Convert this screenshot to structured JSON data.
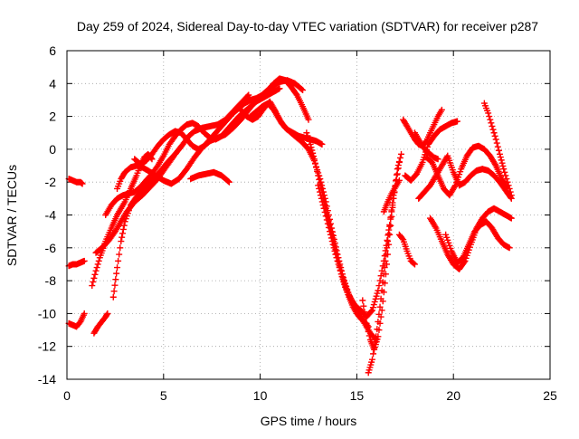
{
  "chart_data": {
    "type": "scatter",
    "title": "Day 259 of 2024, Sidereal Day-to-day VTEC variation (SDTVAR) for receiver p287",
    "xlabel": "GPS time / hours",
    "ylabel": "SDTVAR / TECUs",
    "xlim": [
      0,
      25
    ],
    "ylim": [
      -14,
      6
    ],
    "xticks": [
      "0",
      "5",
      "10",
      "15",
      "20",
      "25"
    ],
    "yticks": [
      "6",
      "4",
      "2",
      "0",
      "-2",
      "-4",
      "-6",
      "-8",
      "-10",
      "-12",
      "-14"
    ],
    "grid": true,
    "marker": "+",
    "color": "#ff0000",
    "series": [
      {
        "x": [
          0.1,
          0.3,
          0.5,
          0.7,
          0.8
        ],
        "y": [
          -1.8,
          -1.9,
          -2.0,
          -2.0,
          -2.1
        ]
      },
      {
        "x": [
          0.1,
          0.3,
          0.5,
          0.7,
          0.9
        ],
        "y": [
          -7.1,
          -7.0,
          -7.0,
          -6.9,
          -6.8
        ]
      },
      {
        "x": [
          0.1,
          0.3,
          0.5,
          0.7,
          0.9
        ],
        "y": [
          -10.6,
          -10.7,
          -10.8,
          -10.5,
          -10.0
        ]
      },
      {
        "x": [
          1.4,
          1.6,
          1.8,
          2.0,
          2.1
        ],
        "y": [
          -11.2,
          -10.8,
          -10.5,
          -10.2,
          -10.0
        ]
      },
      {
        "x": [
          1.3,
          1.5,
          1.7,
          2.0,
          2.3,
          2.6,
          3.0,
          3.3,
          3.6,
          3.8,
          4.0,
          4.2,
          4.4
        ],
        "y": [
          -8.3,
          -7.4,
          -6.6,
          -5.6,
          -4.8,
          -4.0,
          -3.2,
          -2.4,
          -1.6,
          -1.0,
          -0.5,
          -0.3,
          -0.6
        ]
      },
      {
        "x": [
          1.5,
          1.7,
          1.9,
          2.2,
          2.5,
          2.8,
          3.1,
          3.5,
          3.9,
          4.3,
          4.7,
          5.0,
          5.3,
          5.6
        ],
        "y": [
          -6.3,
          -6.1,
          -5.9,
          -5.5,
          -5.0,
          -4.4,
          -3.8,
          -3.2,
          -2.8,
          -2.3,
          -1.8,
          -1.3,
          -0.8,
          -0.3
        ]
      },
      {
        "x": [
          2.4,
          2.6,
          2.8,
          3.0,
          3.3,
          3.6,
          4.0,
          4.4,
          4.8,
          5.2,
          5.6,
          6.0,
          6.3,
          6.6,
          7.0,
          7.4,
          7.8,
          8.2,
          8.6,
          9.0,
          9.4
        ],
        "y": [
          -9.0,
          -7.2,
          -5.6,
          -4.4,
          -3.4,
          -2.9,
          -2.4,
          -1.9,
          -1.4,
          -0.8,
          -0.3,
          0.3,
          0.8,
          1.1,
          1.3,
          1.4,
          1.5,
          1.8,
          2.3,
          2.8,
          3.3
        ]
      },
      {
        "x": [
          2.0,
          2.3,
          2.6,
          2.9,
          3.2,
          3.5,
          3.8,
          4.1,
          4.4,
          4.7,
          5.0,
          5.3,
          5.6,
          5.9,
          6.2,
          6.5,
          6.8,
          7.1,
          7.4,
          7.7,
          8.0,
          8.3,
          8.6,
          8.9,
          9.2,
          9.5,
          9.8,
          10.1,
          10.4,
          10.7,
          11.0
        ],
        "y": [
          -4.0,
          -3.4,
          -3.0,
          -2.8,
          -2.7,
          -2.6,
          -2.3,
          -1.9,
          -1.5,
          -1.0,
          -0.4,
          0.3,
          0.8,
          1.2,
          1.5,
          1.6,
          1.4,
          1.0,
          0.7,
          0.6,
          0.8,
          1.2,
          1.6,
          2.0,
          2.3,
          2.6,
          2.9,
          3.1,
          3.3,
          3.5,
          3.7
        ]
      },
      {
        "x": [
          2.6,
          2.8,
          3.0,
          3.3,
          3.6,
          3.9,
          4.2,
          4.6,
          5.0,
          5.4,
          5.8,
          6.2,
          6.6,
          7.0,
          7.4,
          7.8,
          8.2,
          8.6,
          9.0,
          9.4,
          9.8,
          10.2,
          10.6,
          11.0,
          11.4,
          11.8,
          12.2
        ],
        "y": [
          -2.4,
          -1.8,
          -1.4,
          -1.1,
          -1.0,
          -1.1,
          -1.3,
          -1.6,
          -1.9,
          -2.1,
          -1.8,
          -1.2,
          -0.5,
          0.1,
          0.5,
          0.7,
          0.9,
          1.3,
          1.8,
          2.4,
          3.0,
          3.4,
          3.8,
          4.1,
          4.2,
          4.0,
          3.6
        ]
      },
      {
        "x": [
          6.4,
          6.8,
          7.2,
          7.6,
          8.0,
          8.4
        ],
        "y": [
          -1.8,
          -1.6,
          -1.5,
          -1.4,
          -1.6,
          -2.0
        ]
      },
      {
        "x": [
          3.5,
          3.8,
          4.1,
          4.4,
          4.7,
          5.0,
          5.3,
          5.6,
          5.9,
          6.2,
          6.5,
          6.8,
          7.1,
          7.4,
          7.7,
          8.0,
          8.3,
          8.6,
          8.9,
          9.2,
          9.5,
          9.8,
          10.1,
          10.4,
          10.7,
          11.0,
          11.3,
          11.6,
          11.9,
          12.2,
          12.5
        ],
        "y": [
          -0.6,
          -0.9,
          -0.7,
          -0.3,
          0.2,
          0.6,
          0.9,
          1.1,
          1.0,
          0.6,
          0.2,
          0.0,
          0.2,
          0.6,
          1.0,
          1.4,
          1.8,
          2.2,
          2.5,
          2.8,
          3.0,
          3.1,
          3.3,
          3.6,
          4.0,
          4.3,
          4.2,
          3.8,
          3.3,
          2.6,
          1.8
        ]
      },
      {
        "x": [
          9.0,
          9.3,
          9.6,
          9.9,
          10.2,
          10.5,
          10.8,
          11.1,
          11.4,
          11.7,
          12.0,
          12.3,
          12.6,
          12.9,
          13.2
        ],
        "y": [
          2.4,
          2.0,
          1.8,
          2.0,
          2.5,
          2.9,
          2.3,
          1.6,
          1.2,
          1.0,
          0.8,
          0.7,
          0.6,
          0.5,
          0.3
        ]
      },
      {
        "x": [
          9.5,
          9.8,
          10.1,
          10.4,
          10.7,
          11.0,
          11.3,
          11.6,
          11.9,
          12.2,
          12.5,
          12.8,
          13.1,
          13.4,
          13.7,
          14.0,
          14.3,
          14.6,
          14.9,
          15.2,
          15.5,
          15.8,
          16.1,
          16.4,
          16.7,
          16.9
        ],
        "y": [
          2.0,
          2.3,
          2.6,
          2.8,
          2.4,
          1.8,
          1.3,
          1.0,
          0.7,
          0.4,
          0.0,
          -0.7,
          -1.8,
          -3.2,
          -4.8,
          -6.4,
          -7.8,
          -8.9,
          -9.5,
          -9.8,
          -10.2,
          -9.8,
          -8.6,
          -6.8,
          -4.6,
          -2.8
        ]
      },
      {
        "x": [
          12.4,
          12.6,
          12.8,
          13.0,
          13.2,
          13.4,
          13.6,
          13.8,
          14.0,
          14.2,
          14.4,
          14.6,
          14.8,
          15.0,
          15.2,
          15.4,
          15.6
        ],
        "y": [
          1.0,
          0.3,
          -0.6,
          -1.6,
          -2.6,
          -3.6,
          -4.6,
          -5.6,
          -6.6,
          -7.6,
          -8.4,
          -9.0,
          -9.6,
          -10.0,
          -10.3,
          -10.5,
          -10.8
        ]
      },
      {
        "x": [
          13.0,
          13.3,
          13.6,
          13.9,
          14.2,
          14.5,
          14.8,
          15.1,
          15.4,
          15.7,
          16.0
        ],
        "y": [
          -2.2,
          -3.6,
          -5.0,
          -6.4,
          -7.6,
          -8.6,
          -9.4,
          -10.0,
          -10.6,
          -11.2,
          -11.6
        ]
      },
      {
        "x": [
          15.3,
          15.5,
          15.7,
          15.9,
          16.1,
          16.3,
          16.5,
          16.7,
          16.9,
          17.1,
          17.3
        ],
        "y": [
          -9.2,
          -10.6,
          -11.6,
          -12.2,
          -11.4,
          -9.8,
          -7.6,
          -5.2,
          -3.0,
          -1.2,
          -0.3
        ]
      },
      {
        "x": [
          15.6,
          15.8,
          16.0,
          16.2,
          16.4,
          16.6,
          16.8,
          17.0,
          17.2
        ],
        "y": [
          -13.6,
          -12.8,
          -11.4,
          -9.6,
          -7.6,
          -5.6,
          -3.8,
          -2.2,
          -0.8
        ]
      },
      {
        "x": [
          16.4,
          16.6,
          16.8,
          17.0,
          17.2
        ],
        "y": [
          -3.8,
          -3.2,
          -2.7,
          -2.3,
          -1.9
        ]
      },
      {
        "x": [
          17.2,
          17.4,
          17.6,
          17.8,
          18.0
        ],
        "y": [
          -5.2,
          -5.5,
          -6.2,
          -6.8,
          -7.0
        ]
      },
      {
        "x": [
          17.4,
          17.6,
          17.8,
          18.0,
          18.2,
          18.4,
          18.6,
          18.8,
          19.0,
          19.2,
          19.4
        ],
        "y": [
          1.8,
          1.4,
          1.0,
          0.6,
          0.3,
          0.2,
          0.5,
          1.0,
          1.5,
          2.0,
          2.4
        ]
      },
      {
        "x": [
          17.5,
          17.8,
          18.1,
          18.4,
          18.7,
          19.0,
          19.3,
          19.6,
          19.9,
          20.2
        ],
        "y": [
          -1.6,
          -1.9,
          -1.5,
          -0.8,
          0.3,
          0.8,
          1.2,
          1.4,
          1.6,
          1.7
        ]
      },
      {
        "x": [
          18.2,
          18.5,
          18.8,
          19.1,
          19.4,
          19.7,
          20.0,
          20.3,
          20.6,
          20.9,
          21.2,
          21.5,
          21.8,
          22.1,
          22.4,
          22.7,
          23.0
        ],
        "y": [
          -3.0,
          -2.6,
          -2.2,
          -1.6,
          -1.0,
          -0.4,
          -1.4,
          -2.2,
          -2.0,
          -1.6,
          -1.3,
          -1.2,
          -1.3,
          -1.6,
          -2.0,
          -2.5,
          -3.0
        ]
      },
      {
        "x": [
          18.8,
          19.1,
          19.4,
          19.7,
          20.0,
          20.3,
          20.6,
          20.9,
          21.2,
          21.5,
          21.8,
          22.1,
          22.4,
          22.7,
          23.0
        ],
        "y": [
          -4.2,
          -4.8,
          -5.6,
          -6.4,
          -7.0,
          -7.3,
          -6.8,
          -5.8,
          -4.8,
          -4.2,
          -3.8,
          -3.6,
          -3.8,
          -4.0,
          -4.2
        ]
      },
      {
        "x": [
          19.6,
          19.9,
          20.2,
          20.5,
          20.8,
          21.1,
          21.4,
          21.7,
          22.0,
          22.3,
          22.6,
          22.9
        ],
        "y": [
          -5.2,
          -6.2,
          -6.9,
          -6.6,
          -5.8,
          -5.0,
          -4.6,
          -4.4,
          -4.8,
          -5.4,
          -5.8,
          -6.0
        ]
      },
      {
        "x": [
          18.6,
          18.9,
          19.2,
          19.5,
          19.8,
          20.1,
          20.4,
          20.7,
          21.0,
          21.3,
          21.6,
          21.9,
          22.2,
          22.5,
          22.8
        ],
        "y": [
          -0.5,
          -0.8,
          -1.6,
          -2.4,
          -2.8,
          -2.2,
          -1.2,
          -0.4,
          0.1,
          0.2,
          0.0,
          -0.4,
          -1.0,
          -1.8,
          -2.4
        ]
      },
      {
        "x": [
          21.6,
          21.8,
          22.0,
          22.2,
          22.4,
          22.6,
          22.8,
          23.0
        ],
        "y": [
          2.8,
          2.2,
          1.4,
          0.6,
          -0.3,
          -1.2,
          -2.0,
          -2.8
        ]
      },
      {
        "x": [
          18.0,
          18.2,
          18.4,
          18.6,
          18.8,
          19.0,
          19.2
        ],
        "y": [
          1.0,
          0.6,
          0.2,
          -0.1,
          -0.3,
          -0.5,
          -0.6
        ]
      }
    ]
  }
}
